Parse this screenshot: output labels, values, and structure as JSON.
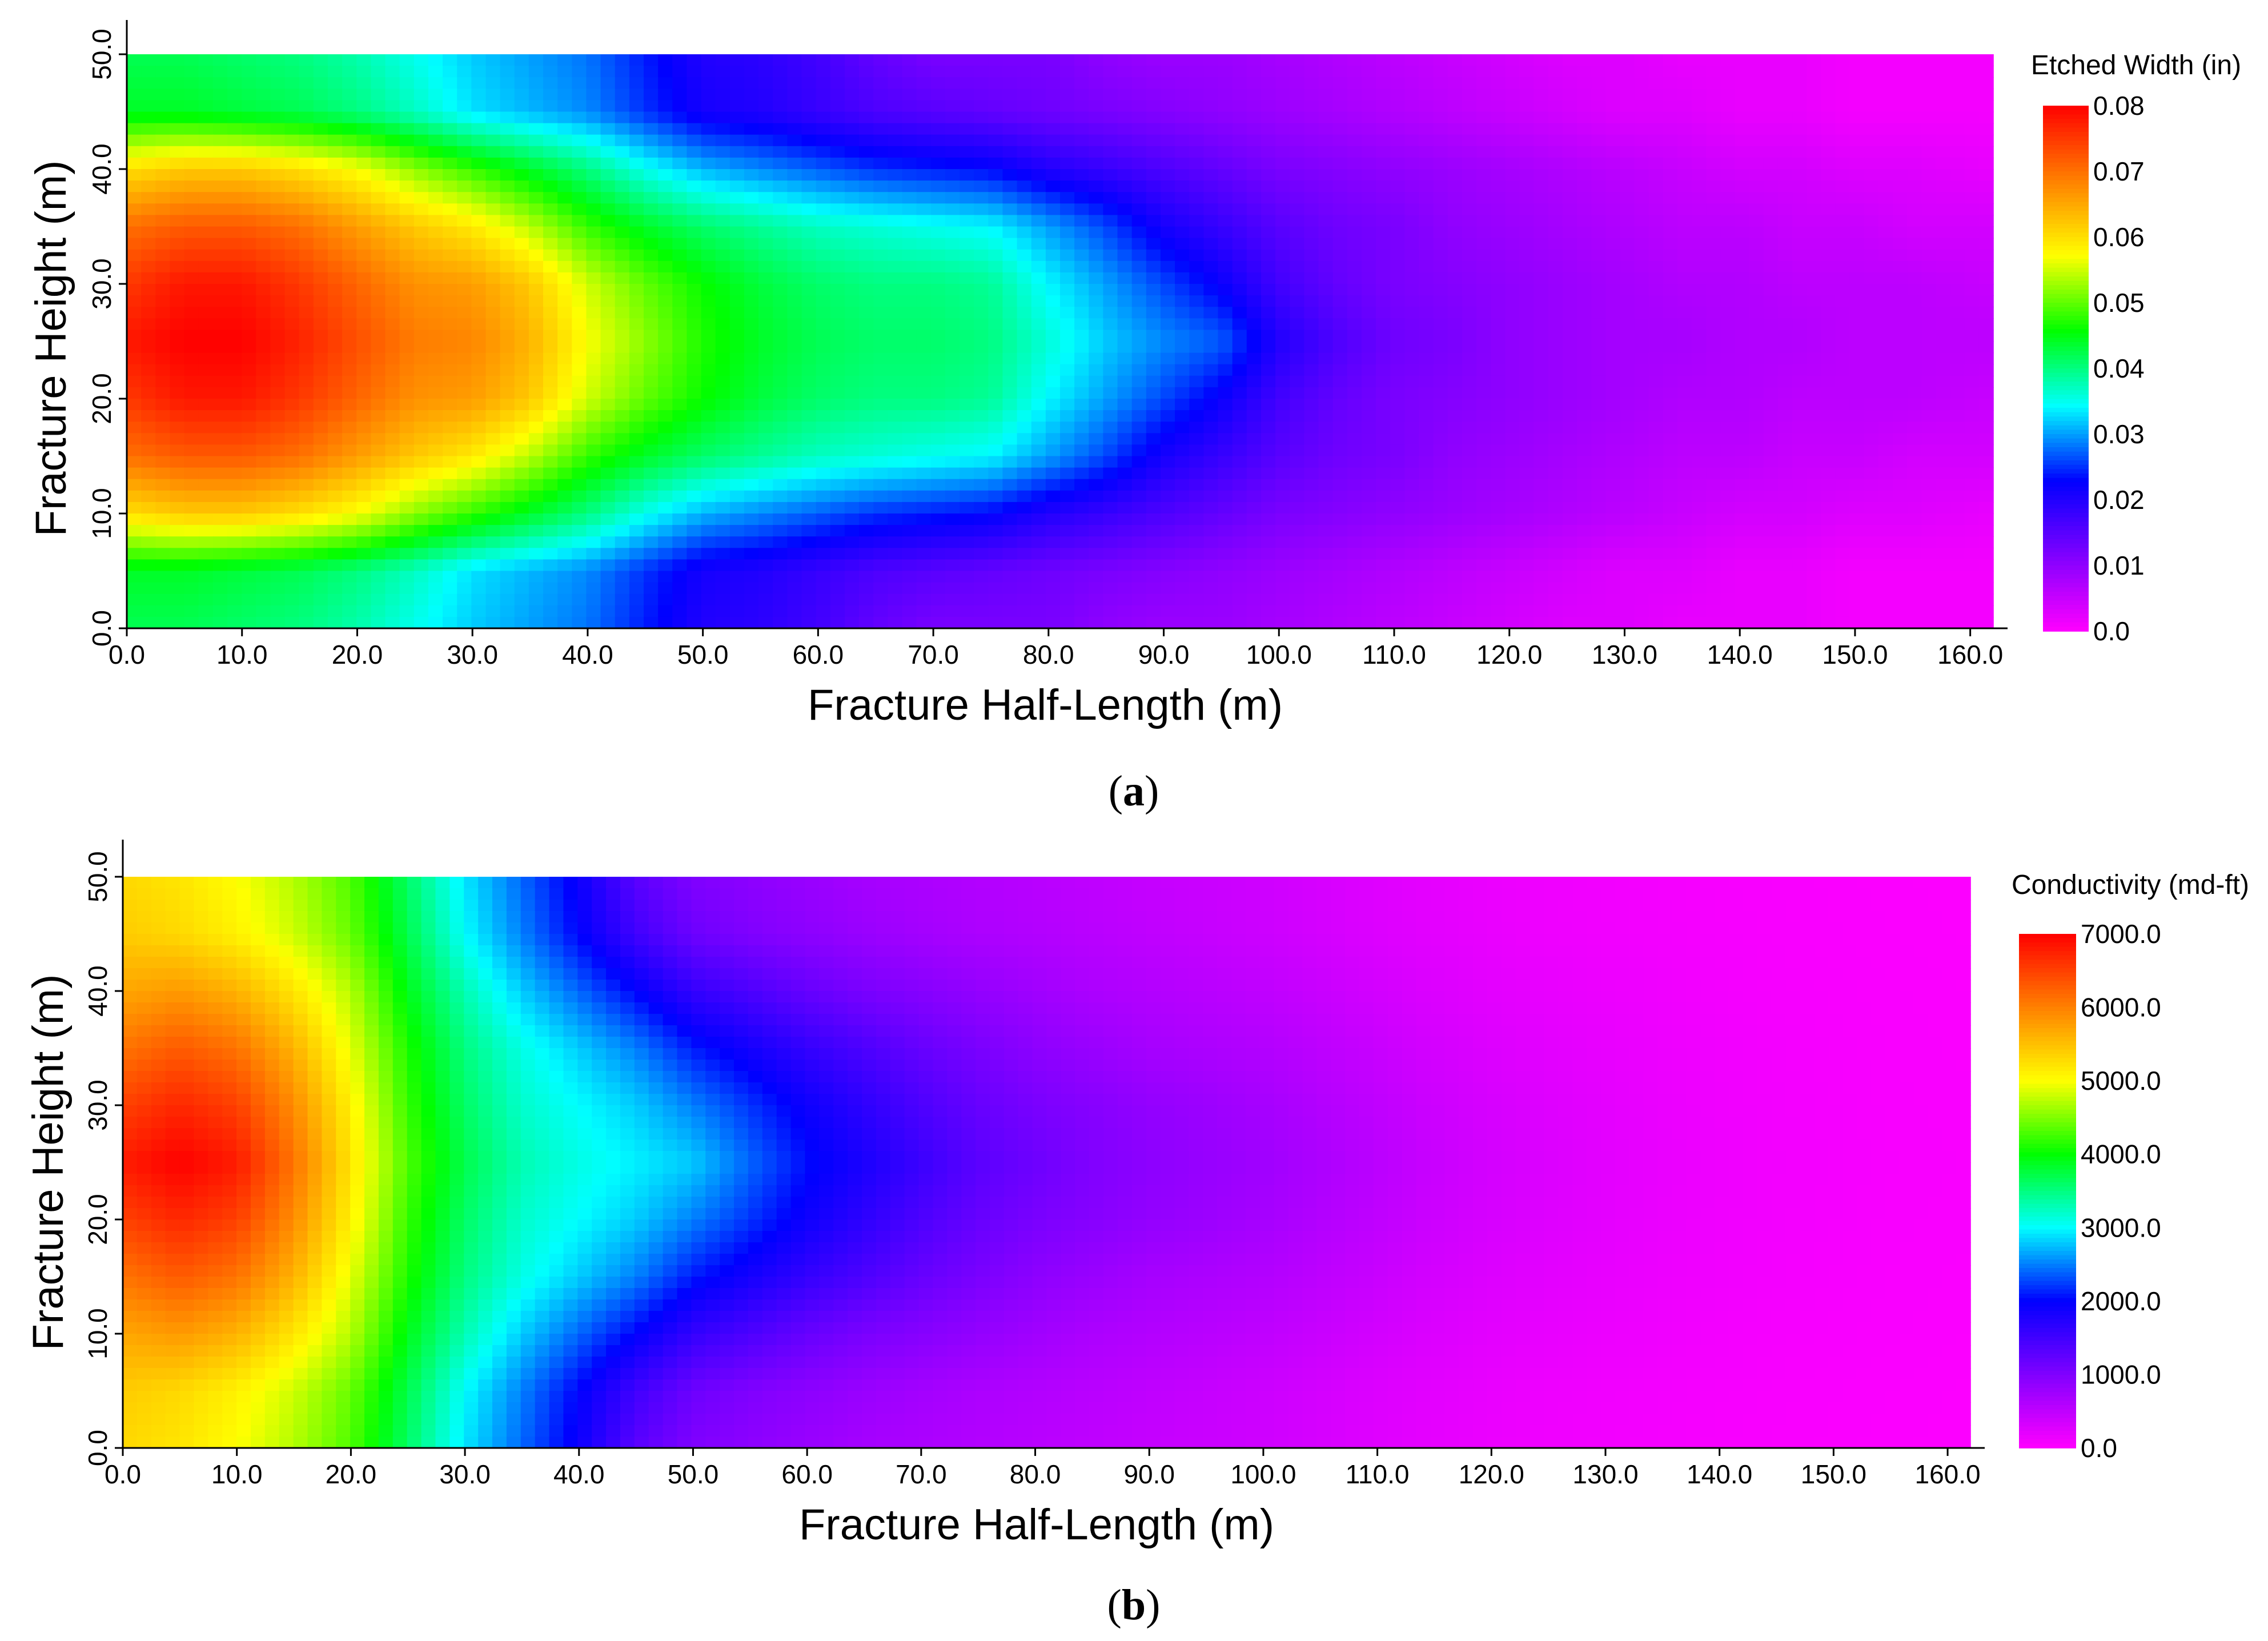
{
  "chart_data": [
    {
      "type": "heatmap",
      "caption_letter": "a",
      "xlabel": "Fracture Half-Length (m)",
      "ylabel": "Fracture Height (m)",
      "xlim": [
        0,
        162
      ],
      "ylim": [
        0,
        50
      ],
      "x_ticks": [
        "0.0",
        "10.0",
        "20.0",
        "30.0",
        "40.0",
        "50.0",
        "60.0",
        "70.0",
        "80.0",
        "90.0",
        "100.0",
        "110.0",
        "120.0",
        "130.0",
        "140.0",
        "150.0",
        "160.0"
      ],
      "y_ticks": [
        "0.0",
        "10.0",
        "20.0",
        "30.0",
        "40.0",
        "50.0"
      ],
      "colorbar_title": "Etched Width (in)",
      "colorbar_ticks": [
        "0.08",
        "0.07",
        "0.06",
        "0.05",
        "0.04",
        "0.03",
        "0.02",
        "0.01",
        "0.0"
      ],
      "vmin": 0.0,
      "vmax": 0.08,
      "colormap": [
        "#ff00ff",
        "#8000ff",
        "#0000ff",
        "#00ffff",
        "#00ff00",
        "#ffff00",
        "#ff8000",
        "#ff0000"
      ],
      "x_samples": [
        0,
        5,
        10,
        15,
        20,
        25,
        30,
        35,
        40,
        45,
        50,
        55,
        60,
        65,
        70,
        75,
        80,
        85,
        90,
        95,
        100,
        105,
        110,
        115,
        120,
        125,
        130,
        135,
        140,
        145,
        150,
        155,
        162
      ],
      "y_samples": [
        0,
        5,
        10,
        15,
        20,
        25,
        30,
        35,
        40,
        45,
        50
      ],
      "values": [
        [
          0.042,
          0.042,
          0.041,
          0.04,
          0.038,
          0.035,
          0.032,
          0.03,
          0.028,
          0.024,
          0.02,
          0.019,
          0.017,
          0.014,
          0.012,
          0.012,
          0.012,
          0.01,
          0.009,
          0.009,
          0.008,
          0.007,
          0.006,
          0.005,
          0.004,
          0.003,
          0.003,
          0.002,
          0.002,
          0.002,
          0.001,
          0.001,
          0.001
        ],
        [
          0.044,
          0.044,
          0.043,
          0.042,
          0.04,
          0.037,
          0.033,
          0.031,
          0.029,
          0.025,
          0.021,
          0.02,
          0.018,
          0.016,
          0.015,
          0.014,
          0.013,
          0.012,
          0.011,
          0.01,
          0.009,
          0.008,
          0.007,
          0.006,
          0.005,
          0.004,
          0.003,
          0.003,
          0.002,
          0.002,
          0.001,
          0.001,
          0.001
        ],
        [
          0.06,
          0.062,
          0.062,
          0.06,
          0.057,
          0.052,
          0.048,
          0.044,
          0.04,
          0.035,
          0.031,
          0.029,
          0.027,
          0.025,
          0.024,
          0.023,
          0.02,
          0.018,
          0.016,
          0.014,
          0.012,
          0.011,
          0.01,
          0.009,
          0.008,
          0.007,
          0.006,
          0.005,
          0.004,
          0.004,
          0.003,
          0.003,
          0.002
        ],
        [
          0.07,
          0.072,
          0.072,
          0.07,
          0.066,
          0.062,
          0.059,
          0.054,
          0.048,
          0.044,
          0.041,
          0.039,
          0.037,
          0.036,
          0.035,
          0.034,
          0.03,
          0.026,
          0.021,
          0.018,
          0.015,
          0.013,
          0.012,
          0.01,
          0.009,
          0.008,
          0.007,
          0.006,
          0.006,
          0.005,
          0.005,
          0.004,
          0.004
        ],
        [
          0.075,
          0.078,
          0.078,
          0.075,
          0.071,
          0.067,
          0.066,
          0.062,
          0.055,
          0.05,
          0.046,
          0.043,
          0.041,
          0.04,
          0.04,
          0.039,
          0.034,
          0.03,
          0.026,
          0.022,
          0.017,
          0.014,
          0.012,
          0.011,
          0.01,
          0.009,
          0.008,
          0.007,
          0.007,
          0.006,
          0.006,
          0.006,
          0.005
        ],
        [
          0.078,
          0.08,
          0.08,
          0.077,
          0.073,
          0.069,
          0.068,
          0.064,
          0.057,
          0.052,
          0.047,
          0.044,
          0.042,
          0.041,
          0.041,
          0.04,
          0.036,
          0.032,
          0.029,
          0.027,
          0.02,
          0.016,
          0.013,
          0.012,
          0.01,
          0.009,
          0.008,
          0.008,
          0.007,
          0.007,
          0.006,
          0.006,
          0.006
        ],
        [
          0.075,
          0.078,
          0.078,
          0.075,
          0.071,
          0.067,
          0.066,
          0.062,
          0.055,
          0.05,
          0.046,
          0.043,
          0.041,
          0.04,
          0.04,
          0.039,
          0.034,
          0.03,
          0.026,
          0.022,
          0.017,
          0.014,
          0.012,
          0.011,
          0.01,
          0.009,
          0.008,
          0.007,
          0.007,
          0.006,
          0.006,
          0.006,
          0.005
        ],
        [
          0.07,
          0.072,
          0.072,
          0.07,
          0.066,
          0.062,
          0.059,
          0.054,
          0.048,
          0.044,
          0.041,
          0.039,
          0.037,
          0.036,
          0.035,
          0.034,
          0.03,
          0.026,
          0.021,
          0.018,
          0.015,
          0.013,
          0.012,
          0.01,
          0.009,
          0.008,
          0.007,
          0.006,
          0.006,
          0.005,
          0.005,
          0.004,
          0.004
        ],
        [
          0.06,
          0.062,
          0.062,
          0.06,
          0.057,
          0.052,
          0.048,
          0.044,
          0.04,
          0.035,
          0.031,
          0.029,
          0.027,
          0.025,
          0.024,
          0.023,
          0.02,
          0.018,
          0.016,
          0.014,
          0.012,
          0.011,
          0.01,
          0.009,
          0.008,
          0.007,
          0.006,
          0.005,
          0.004,
          0.004,
          0.003,
          0.003,
          0.002
        ],
        [
          0.044,
          0.044,
          0.043,
          0.042,
          0.04,
          0.037,
          0.033,
          0.031,
          0.029,
          0.025,
          0.021,
          0.02,
          0.018,
          0.016,
          0.015,
          0.014,
          0.013,
          0.012,
          0.011,
          0.01,
          0.009,
          0.008,
          0.007,
          0.006,
          0.005,
          0.004,
          0.003,
          0.003,
          0.002,
          0.002,
          0.001,
          0.001,
          0.001
        ],
        [
          0.042,
          0.042,
          0.041,
          0.04,
          0.038,
          0.035,
          0.032,
          0.03,
          0.028,
          0.024,
          0.02,
          0.019,
          0.017,
          0.014,
          0.012,
          0.012,
          0.012,
          0.01,
          0.009,
          0.009,
          0.008,
          0.007,
          0.006,
          0.005,
          0.004,
          0.003,
          0.003,
          0.002,
          0.002,
          0.002,
          0.001,
          0.001,
          0.001
        ]
      ]
    },
    {
      "type": "heatmap",
      "caption_letter": "b",
      "xlabel": "Fracture Half-Length (m)",
      "ylabel": "Fracture Height (m)",
      "xlim": [
        0,
        162
      ],
      "ylim": [
        0,
        50
      ],
      "x_ticks": [
        "0.0",
        "10.0",
        "20.0",
        "30.0",
        "40.0",
        "50.0",
        "60.0",
        "70.0",
        "80.0",
        "90.0",
        "100.0",
        "110.0",
        "120.0",
        "130.0",
        "140.0",
        "150.0",
        "160.0"
      ],
      "y_ticks": [
        "0.0",
        "10.0",
        "20.0",
        "30.0",
        "40.0",
        "50.0"
      ],
      "colorbar_title": "Conductivity (md-ft)",
      "colorbar_ticks": [
        "7000.0",
        "6000.0",
        "5000.0",
        "4000.0",
        "3000.0",
        "2000.0",
        "1000.0",
        "0.0"
      ],
      "vmin": 0.0,
      "vmax": 7000.0,
      "colormap": [
        "#ff00ff",
        "#8000ff",
        "#0000ff",
        "#00ffff",
        "#00ff00",
        "#ffff00",
        "#ff8000",
        "#ff0000"
      ],
      "x_samples": [
        0,
        5,
        10,
        15,
        20,
        25,
        30,
        35,
        40,
        45,
        50,
        55,
        60,
        65,
        70,
        75,
        80,
        85,
        90,
        95,
        100,
        105,
        110,
        115,
        120,
        125,
        130,
        135,
        140,
        145,
        150,
        155,
        162
      ],
      "y_samples": [
        0,
        5,
        10,
        15,
        20,
        25,
        30,
        35,
        40,
        45,
        50
      ],
      "values": [
        [
          5300,
          5200,
          5000,
          4700,
          4300,
          3600,
          2900,
          2400,
          1900,
          1300,
          1000,
          900,
          800,
          700,
          650,
          600,
          550,
          500,
          450,
          420,
          380,
          320,
          250,
          200,
          150,
          120,
          100,
          80,
          60,
          50,
          40,
          30,
          20
        ],
        [
          5400,
          5300,
          5100,
          4800,
          4400,
          3700,
          3000,
          2500,
          2000,
          1500,
          1150,
          1000,
          900,
          800,
          720,
          650,
          600,
          550,
          500,
          450,
          400,
          340,
          270,
          220,
          170,
          130,
          110,
          90,
          70,
          55,
          45,
          35,
          25
        ],
        [
          5700,
          5800,
          5600,
          5200,
          4700,
          3900,
          3300,
          2800,
          2400,
          2000,
          1600,
          1400,
          1200,
          1050,
          950,
          850,
          750,
          650,
          600,
          550,
          500,
          430,
          350,
          280,
          220,
          180,
          150,
          120,
          90,
          70,
          55,
          45,
          35
        ],
        [
          6100,
          6300,
          6100,
          5600,
          4900,
          4100,
          3500,
          3100,
          2800,
          2500,
          2100,
          1850,
          1600,
          1400,
          1200,
          1050,
          900,
          800,
          700,
          650,
          600,
          520,
          430,
          340,
          270,
          220,
          180,
          140,
          110,
          85,
          65,
          50,
          40
        ],
        [
          6500,
          6700,
          6500,
          5900,
          5100,
          4200,
          3600,
          3200,
          3000,
          2800,
          2500,
          2200,
          1900,
          1650,
          1400,
          1200,
          1050,
          950,
          850,
          780,
          700,
          600,
          500,
          400,
          320,
          260,
          210,
          160,
          120,
          95,
          75,
          55,
          45
        ],
        [
          6800,
          7000,
          6800,
          6100,
          5200,
          4300,
          3700,
          3300,
          3100,
          2950,
          2800,
          2400,
          2050,
          1800,
          1550,
          1300,
          1150,
          1000,
          900,
          820,
          750,
          650,
          540,
          430,
          340,
          280,
          220,
          170,
          130,
          100,
          80,
          60,
          50
        ],
        [
          6500,
          6700,
          6500,
          5900,
          5100,
          4200,
          3600,
          3200,
          3000,
          2800,
          2500,
          2200,
          1900,
          1650,
          1400,
          1200,
          1050,
          950,
          850,
          780,
          700,
          600,
          500,
          400,
          320,
          260,
          210,
          160,
          120,
          95,
          75,
          55,
          45
        ],
        [
          6100,
          6300,
          6100,
          5600,
          4900,
          4100,
          3500,
          3100,
          2800,
          2500,
          2100,
          1850,
          1600,
          1400,
          1200,
          1050,
          900,
          800,
          700,
          650,
          600,
          520,
          430,
          340,
          270,
          220,
          180,
          140,
          110,
          85,
          65,
          50,
          40
        ],
        [
          5700,
          5800,
          5600,
          5200,
          4700,
          3900,
          3300,
          2800,
          2400,
          2000,
          1600,
          1400,
          1200,
          1050,
          950,
          850,
          750,
          650,
          600,
          550,
          500,
          430,
          350,
          280,
          220,
          180,
          150,
          120,
          90,
          70,
          55,
          45,
          35
        ],
        [
          5400,
          5300,
          5100,
          4800,
          4400,
          3700,
          3000,
          2500,
          2000,
          1500,
          1150,
          1000,
          900,
          800,
          720,
          650,
          600,
          550,
          500,
          450,
          400,
          340,
          270,
          220,
          170,
          130,
          110,
          90,
          70,
          55,
          45,
          35,
          25
        ],
        [
          5300,
          5200,
          5000,
          4700,
          4300,
          3600,
          2900,
          2400,
          1900,
          1300,
          1000,
          900,
          800,
          700,
          650,
          600,
          550,
          500,
          450,
          420,
          380,
          320,
          250,
          200,
          150,
          120,
          100,
          80,
          60,
          50,
          40,
          30,
          20
        ]
      ]
    }
  ]
}
